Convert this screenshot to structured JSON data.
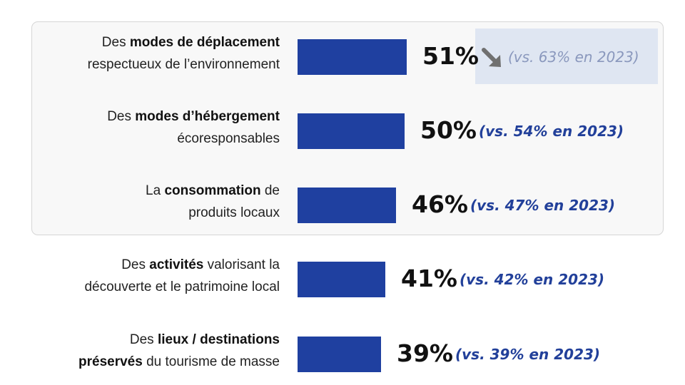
{
  "chart_data": {
    "type": "bar",
    "orientation": "horizontal",
    "categories": [
      "Des modes de déplacement respectueux de l’environnement",
      "Des modes d’hébergement écoresponsables",
      "La consommation de produits locaux",
      "Des activités valorisant la découverte et le patrimoine local",
      "Des lieux / destinations préservés du tourisme de masse"
    ],
    "series": [
      {
        "values": [
          51,
          50,
          46,
          41,
          39
        ]
      },
      {
        "name": "2023",
        "values": [
          63,
          54,
          47,
          42,
          39
        ]
      }
    ],
    "unit": "%",
    "xlim": [
      0,
      100
    ],
    "highlighted_rows": 3,
    "colors": {
      "bar": "#1f40a0",
      "comparison": "#22409a",
      "comparison_muted": "#8a98bd",
      "trend_box": "#dfe6f2",
      "arrow": "#707070"
    }
  },
  "rows": [
    {
      "label_parts": [
        [
          {
            "t": "Des ",
            "b": false
          },
          {
            "t": "modes de déplacement",
            "b": true
          }
        ],
        [
          {
            "t": "respectueux de l’environnement",
            "b": false
          }
        ]
      ],
      "value_text": "51%",
      "comparison_text": "(vs. 63% en 2023)",
      "trend_icon": "arrow-down-right-icon",
      "muted": true
    },
    {
      "label_parts": [
        [
          {
            "t": "Des ",
            "b": false
          },
          {
            "t": "modes d’hébergement",
            "b": true
          }
        ],
        [
          {
            "t": "écoresponsables",
            "b": false
          }
        ]
      ],
      "value_text": "50%",
      "comparison_text": "(vs. 54% en 2023)"
    },
    {
      "label_parts": [
        [
          {
            "t": "La ",
            "b": false
          },
          {
            "t": "consommation",
            "b": true
          },
          {
            "t": " de",
            "b": false
          }
        ],
        [
          {
            "t": "produits locaux",
            "b": false
          }
        ]
      ],
      "value_text": "46%",
      "comparison_text": "(vs. 47% en 2023)"
    },
    {
      "label_parts": [
        [
          {
            "t": "Des ",
            "b": false
          },
          {
            "t": "activités",
            "b": true
          },
          {
            "t": " valorisant la",
            "b": false
          }
        ],
        [
          {
            "t": "découverte et le patrimoine local",
            "b": false
          }
        ]
      ],
      "value_text": "41%",
      "comparison_text": "(vs. 42% en 2023)"
    },
    {
      "label_parts": [
        [
          {
            "t": "Des ",
            "b": false
          },
          {
            "t": "lieux / destinations",
            "b": true
          }
        ],
        [
          {
            "t": "préservés",
            "b": true
          },
          {
            "t": " du tourisme de masse",
            "b": false
          }
        ]
      ],
      "value_text": "39%",
      "comparison_text": "(vs. 39% en 2023)"
    }
  ]
}
